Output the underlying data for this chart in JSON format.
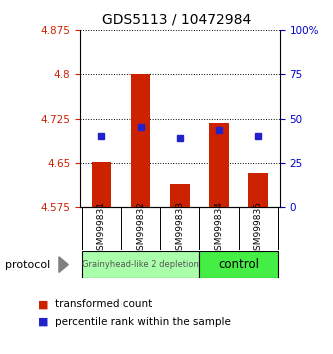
{
  "title": "GDS5113 / 10472984",
  "samples": [
    "GSM999831",
    "GSM999832",
    "GSM999833",
    "GSM999834",
    "GSM999835"
  ],
  "bar_bottoms": [
    4.575,
    4.575,
    4.575,
    4.575,
    4.575
  ],
  "bar_tops": [
    4.652,
    4.8,
    4.614,
    4.718,
    4.632
  ],
  "percentile_values": [
    4.695,
    4.71,
    4.692,
    4.706,
    4.695
  ],
  "ylim_left": [
    4.575,
    4.875
  ],
  "ylim_right": [
    0,
    100
  ],
  "yticks_left": [
    4.575,
    4.65,
    4.725,
    4.8,
    4.875
  ],
  "ytick_labels_left": [
    "4.575",
    "4.65",
    "4.725",
    "4.8",
    "4.875"
  ],
  "yticks_right": [
    0,
    25,
    50,
    75,
    100
  ],
  "ytick_labels_right": [
    "0",
    "25",
    "50",
    "75",
    "100%"
  ],
  "bar_color": "#cc2200",
  "dot_color": "#2222cc",
  "group1_label": "Grainyhead-like 2 depletion",
  "group2_label": "control",
  "group1_color": "#aaffaa",
  "group2_color": "#44ee44",
  "protocol_label": "protocol",
  "legend_bar_label": "transformed count",
  "legend_dot_label": "percentile rank within the sample",
  "bg_color": "#ffffff",
  "sample_box_color": "#cccccc",
  "bar_width": 0.5
}
